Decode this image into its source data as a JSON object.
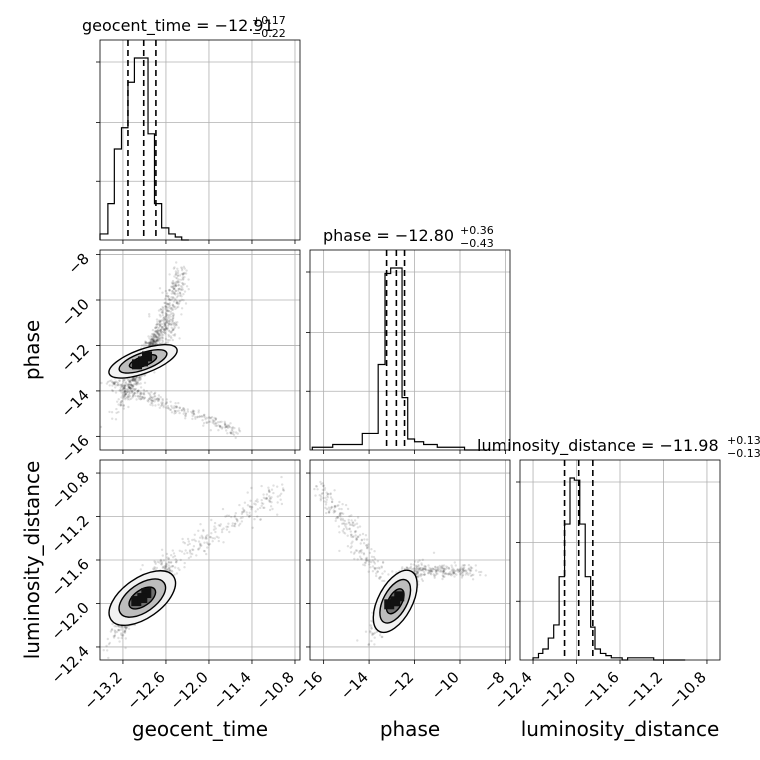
{
  "chart_data": {
    "type": "corner",
    "parameters": [
      "geocent_time",
      "phase",
      "luminosity_distance"
    ],
    "titles": [
      {
        "label": "geocent_time",
        "median": "−12.91",
        "plus": "+0.17",
        "minus": "−0.22"
      },
      {
        "label": "phase",
        "median": "−12.80",
        "plus": "+0.36",
        "minus": "−0.43"
      },
      {
        "label": "luminosity_distance",
        "median": "−11.98",
        "plus": "+0.13",
        "minus": "−0.13"
      }
    ],
    "axis_ranges": {
      "geocent_time": [
        -13.52,
        -10.73
      ],
      "phase": [
        -16.6,
        -7.8
      ],
      "luminosity_distance": [
        -12.52,
        -10.68
      ]
    },
    "ticks": {
      "geocent_time": [
        "−13.2",
        "−12.6",
        "−12.0",
        "−11.4",
        "−10.8"
      ],
      "phase_y": [
        "−8",
        "−10",
        "−12",
        "−14",
        "−16"
      ],
      "phase_x": [
        "−16",
        "−14",
        "−12",
        "−10",
        "−8"
      ],
      "luminosity_distance_y": [
        "−10.8",
        "−11.2",
        "−11.6",
        "−12.0",
        "−12.4"
      ],
      "luminosity_distance_x": [
        "−12.4",
        "−12.0",
        "−11.6",
        "−11.2",
        "−10.8"
      ]
    },
    "quantiles": {
      "geocent_time": [
        -13.13,
        -12.91,
        -12.74
      ],
      "phase": [
        -13.23,
        -12.8,
        -12.44
      ],
      "luminosity_distance": [
        -12.11,
        -11.98,
        -11.85
      ]
    },
    "histograms": {
      "geocent_time": {
        "edges": [
          -13.52,
          -13.41,
          -13.32,
          -13.22,
          -13.13,
          -13.04,
          -12.94,
          -12.85,
          -12.76,
          -12.66,
          -12.56,
          -12.47,
          -12.38,
          -12.28
        ],
        "counts": [
          2,
          12,
          30,
          37,
          52,
          60,
          60,
          35,
          12,
          4,
          2,
          1,
          0
        ]
      },
      "phase": {
        "edges": [
          -16.5,
          -15.6,
          -14.3,
          -13.6,
          -13.3,
          -13.05,
          -12.8,
          -12.55,
          -12.3,
          -12.0,
          -11.6,
          -11.0,
          -9.8,
          -8.8
        ],
        "counts": [
          1,
          2,
          6,
          31,
          64,
          66,
          66,
          19,
          4,
          3,
          2,
          1,
          0
        ]
      },
      "luminosity_distance": {
        "edges": [
          -12.4,
          -12.35,
          -12.31,
          -12.26,
          -12.21,
          -12.16,
          -12.11,
          -12.06,
          -12.02,
          -11.97,
          -11.92,
          -11.87,
          -11.83,
          -11.78,
          -11.73,
          -11.68,
          -11.62,
          -11.58,
          -11.53,
          -11.48,
          -11.38,
          -11.29,
          -11.24,
          -11.0
        ],
        "counts": [
          1,
          3,
          5,
          10,
          16,
          38,
          62,
          83,
          82,
          62,
          38,
          15,
          5,
          3,
          2,
          1,
          1,
          0,
          1,
          1,
          1,
          0,
          0
        ]
      }
    },
    "contour_peaks": {
      "phase_vs_geocent_time": [
        -12.92,
        -12.7
      ],
      "luminosity_distance_vs_geocent_time": [
        -12.93,
        -11.95
      ],
      "luminosity_distance_vs_phase": [
        -12.85,
        -11.98
      ]
    },
    "grid": true
  }
}
